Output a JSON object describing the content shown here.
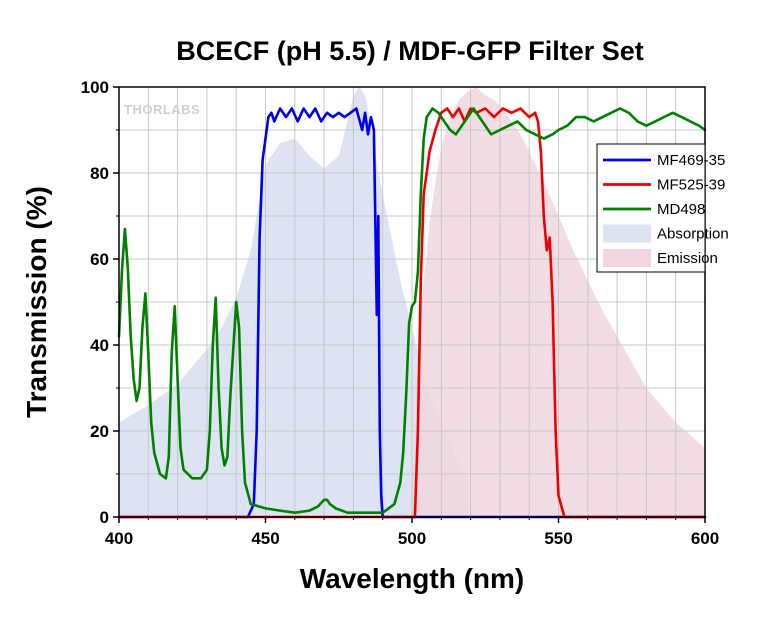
{
  "chart_data": {
    "type": "line",
    "title": "BCECF (pH 5.5) / MDF-GFP Filter Set",
    "xlabel": "Wavelength (nm)",
    "ylabel": "Transmission (%)",
    "xlim": [
      400,
      600
    ],
    "ylim": [
      0,
      100
    ],
    "xticks": [
      "400",
      "450",
      "500",
      "550",
      "600"
    ],
    "yticks": [
      "0",
      "20",
      "40",
      "60",
      "80",
      "100"
    ],
    "grid": true,
    "legend_position": "right",
    "watermark": "THORLABS",
    "series": [
      {
        "name": "MF469-35",
        "kind": "line",
        "color": "#0000ee",
        "x": [
          400,
          444,
          446,
          447,
          448,
          449,
          450,
          451,
          452,
          453,
          455,
          457,
          459,
          461,
          463,
          465,
          467,
          469,
          471,
          473,
          475,
          477,
          479,
          481,
          483,
          484,
          485,
          486,
          487,
          488,
          488.5,
          489,
          489.5,
          490,
          600
        ],
        "y": [
          0,
          0,
          3,
          20,
          65,
          83,
          88,
          93,
          94,
          92,
          95,
          93,
          95,
          92,
          95,
          93,
          95,
          92,
          94,
          93,
          94,
          93,
          94,
          95,
          90,
          94,
          89,
          93,
          90,
          47,
          70,
          20,
          5,
          0,
          0
        ]
      },
      {
        "name": "MF525-39",
        "kind": "line",
        "color": "#ee0000",
        "x": [
          400,
          501,
          502,
          503,
          504,
          505,
          506,
          508,
          510,
          512,
          514,
          516,
          518,
          520,
          522,
          525,
          528,
          531,
          534,
          537,
          540,
          542,
          543,
          544,
          545,
          546,
          547,
          548,
          549,
          550,
          552,
          600
        ],
        "y": [
          0,
          0,
          20,
          55,
          75,
          80,
          85,
          90,
          94,
          95,
          93,
          95,
          92,
          95,
          94,
          95,
          93,
          95,
          94,
          95,
          93,
          94,
          92,
          85,
          70,
          62,
          65,
          50,
          20,
          5,
          0,
          0
        ]
      },
      {
        "name": "MD498",
        "kind": "line",
        "color": "#008000",
        "x": [
          400,
          401,
          402,
          403,
          404,
          405,
          406,
          407,
          408,
          409,
          410,
          411,
          412,
          414,
          416,
          417,
          418,
          419,
          420,
          421,
          422,
          425,
          428,
          430,
          431,
          432,
          433,
          434,
          435,
          436,
          437,
          438,
          440,
          441,
          442,
          443,
          445,
          450,
          455,
          460,
          465,
          468,
          470,
          471,
          472,
          474,
          478,
          482,
          486,
          490,
          492,
          494,
          496,
          497,
          498,
          499,
          500,
          501,
          502,
          503,
          504,
          505,
          507,
          509,
          511,
          513,
          515,
          517,
          519,
          521,
          523,
          525,
          527,
          530,
          533,
          536,
          539,
          542,
          545,
          548,
          550,
          553,
          556,
          559,
          562,
          565,
          568,
          571,
          574,
          577,
          580,
          583,
          586,
          589,
          592,
          595,
          598,
          600
        ],
        "y": [
          42,
          57,
          67,
          58,
          42,
          32,
          27,
          30,
          44,
          52,
          38,
          22,
          15,
          10,
          9,
          14,
          38,
          49,
          32,
          16,
          11,
          9,
          9,
          11,
          20,
          40,
          51,
          30,
          16,
          12,
          14,
          28,
          50,
          44,
          20,
          8,
          3,
          2,
          1.5,
          1,
          1.5,
          2.5,
          4,
          4,
          3,
          2,
          1,
          1,
          1,
          1,
          2,
          3,
          8,
          15,
          28,
          45,
          49,
          50,
          57,
          75,
          88,
          93,
          95,
          94,
          92,
          90,
          89,
          91,
          93,
          95,
          93,
          91,
          89,
          90,
          91,
          92,
          90,
          89,
          88,
          89,
          90,
          91,
          93,
          93,
          92,
          93,
          94,
          95,
          94,
          92,
          91,
          92,
          93,
          94,
          93,
          92,
          91,
          90
        ]
      },
      {
        "name": "Absorption",
        "kind": "area",
        "color": "#dde3f2",
        "x": [
          400,
          410,
          420,
          430,
          435,
          440,
          445,
          450,
          455,
          460,
          465,
          470,
          475,
          478,
          480,
          482,
          484,
          486,
          488,
          490,
          493,
          496,
          500,
          505,
          510,
          515,
          518,
          519
        ],
        "y": [
          22,
          26,
          31,
          39,
          44,
          51,
          62,
          82,
          87,
          88,
          84,
          81,
          84,
          92,
          98,
          100,
          98,
          91,
          82,
          75,
          65,
          55,
          44,
          30,
          22,
          14,
          10,
          0
        ]
      },
      {
        "name": "Emission",
        "kind": "area",
        "color": "#f0d7df",
        "x": [
          500,
          502,
          504,
          506,
          508,
          510,
          513,
          516,
          519,
          522,
          525,
          528,
          531,
          534,
          537,
          540,
          545,
          550,
          555,
          560,
          565,
          570,
          575,
          580,
          585,
          590,
          595,
          600
        ],
        "y": [
          0,
          40,
          55,
          68,
          78,
          86,
          93,
          97,
          99,
          100,
          98,
          97,
          95,
          92,
          89,
          85,
          78,
          70,
          62,
          55,
          48,
          42,
          36,
          30,
          26,
          22,
          19,
          16
        ]
      }
    ]
  }
}
